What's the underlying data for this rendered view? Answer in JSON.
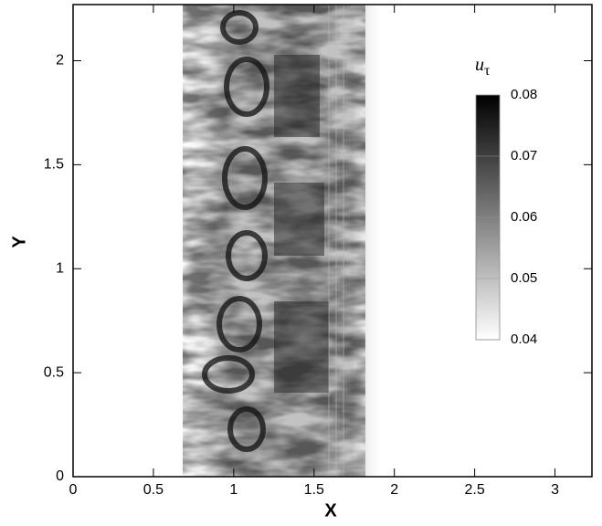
{
  "chart_data": {
    "type": "contour",
    "x_label": "X",
    "y_label": "Y",
    "xlim": [
      0,
      3.23
    ],
    "xticks": [
      0,
      0.5,
      1,
      1.5,
      2,
      2.5,
      3
    ],
    "ylim": [
      0,
      2.27
    ],
    "yticks": [
      0,
      0.5,
      1,
      1.5,
      2
    ],
    "colorbar": {
      "label": {
        "base": "u",
        "subscript": "τ"
      },
      "lim": [
        0.04,
        0.08
      ],
      "ticks": [
        0.04,
        0.05,
        0.06,
        0.07,
        0.08
      ],
      "colors": [
        "#ffffff",
        "#000000"
      ]
    }
  }
}
